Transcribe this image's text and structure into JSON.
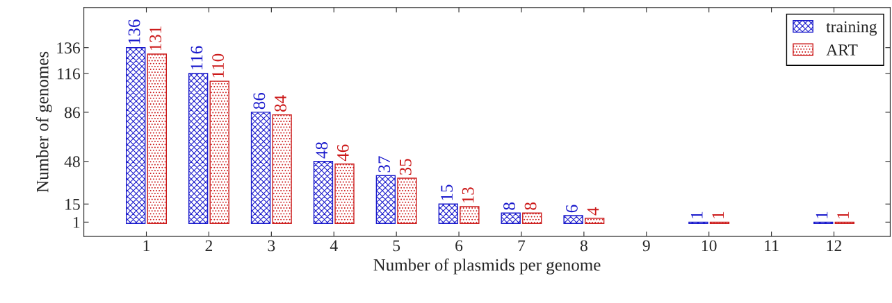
{
  "chart_data": {
    "type": "bar",
    "xlabel": "Number of plasmids per genome",
    "ylabel": "Number of genomes",
    "series": [
      {
        "name": "training",
        "color": "#1a1acc",
        "x": [
          1,
          2,
          3,
          4,
          5,
          6,
          7,
          8,
          10,
          12
        ],
        "values": [
          136,
          116,
          86,
          48,
          37,
          15,
          8,
          6,
          1,
          1
        ]
      },
      {
        "name": "ART",
        "color": "#cc1a1a",
        "x": [
          1,
          2,
          3,
          4,
          5,
          6,
          7,
          8,
          10,
          12
        ],
        "values": [
          131,
          110,
          84,
          46,
          35,
          13,
          8,
          4,
          1,
          1
        ]
      }
    ],
    "xlim": [
      0,
      12.9
    ],
    "xticks": [
      1,
      2,
      3,
      4,
      5,
      6,
      7,
      8,
      9,
      10,
      11,
      12
    ],
    "ylim": [
      -10,
      167
    ],
    "yticks": [
      1,
      15,
      48,
      86,
      116,
      136
    ],
    "data_labels": true,
    "legend": "top right",
    "grid": false
  }
}
